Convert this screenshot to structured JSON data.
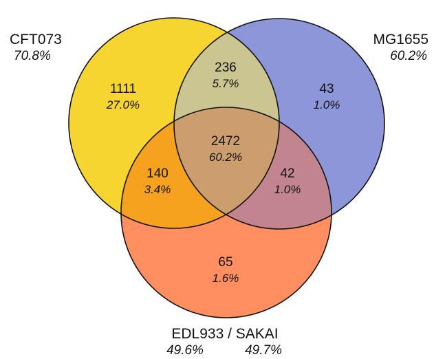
{
  "sets": {
    "cft073": {
      "name": "CFT073",
      "percent": "70.8%",
      "color": "#F7D531"
    },
    "mg1655": {
      "name": "MG1655",
      "percent": "60.2%",
      "color": "#8C96D8"
    },
    "edl933": {
      "name": "EDL933 / SAKAI",
      "percent_a": "49.6%",
      "percent_b": "49.7%",
      "color": "#FF8F60"
    }
  },
  "regions": {
    "cft073_only": {
      "count": "1111",
      "percent": "27.0%"
    },
    "cft073_mg1655": {
      "count": "236",
      "percent": "5.7%"
    },
    "mg1655_only": {
      "count": "43",
      "percent": "1.0%"
    },
    "all_three": {
      "count": "2472",
      "percent": "60.2%"
    },
    "cft073_edl933": {
      "count": "140",
      "percent": "3.4%"
    },
    "mg1655_edl933": {
      "count": "42",
      "percent": "1.0%"
    },
    "edl933_only": {
      "count": "65",
      "percent": "1.6%"
    }
  }
}
